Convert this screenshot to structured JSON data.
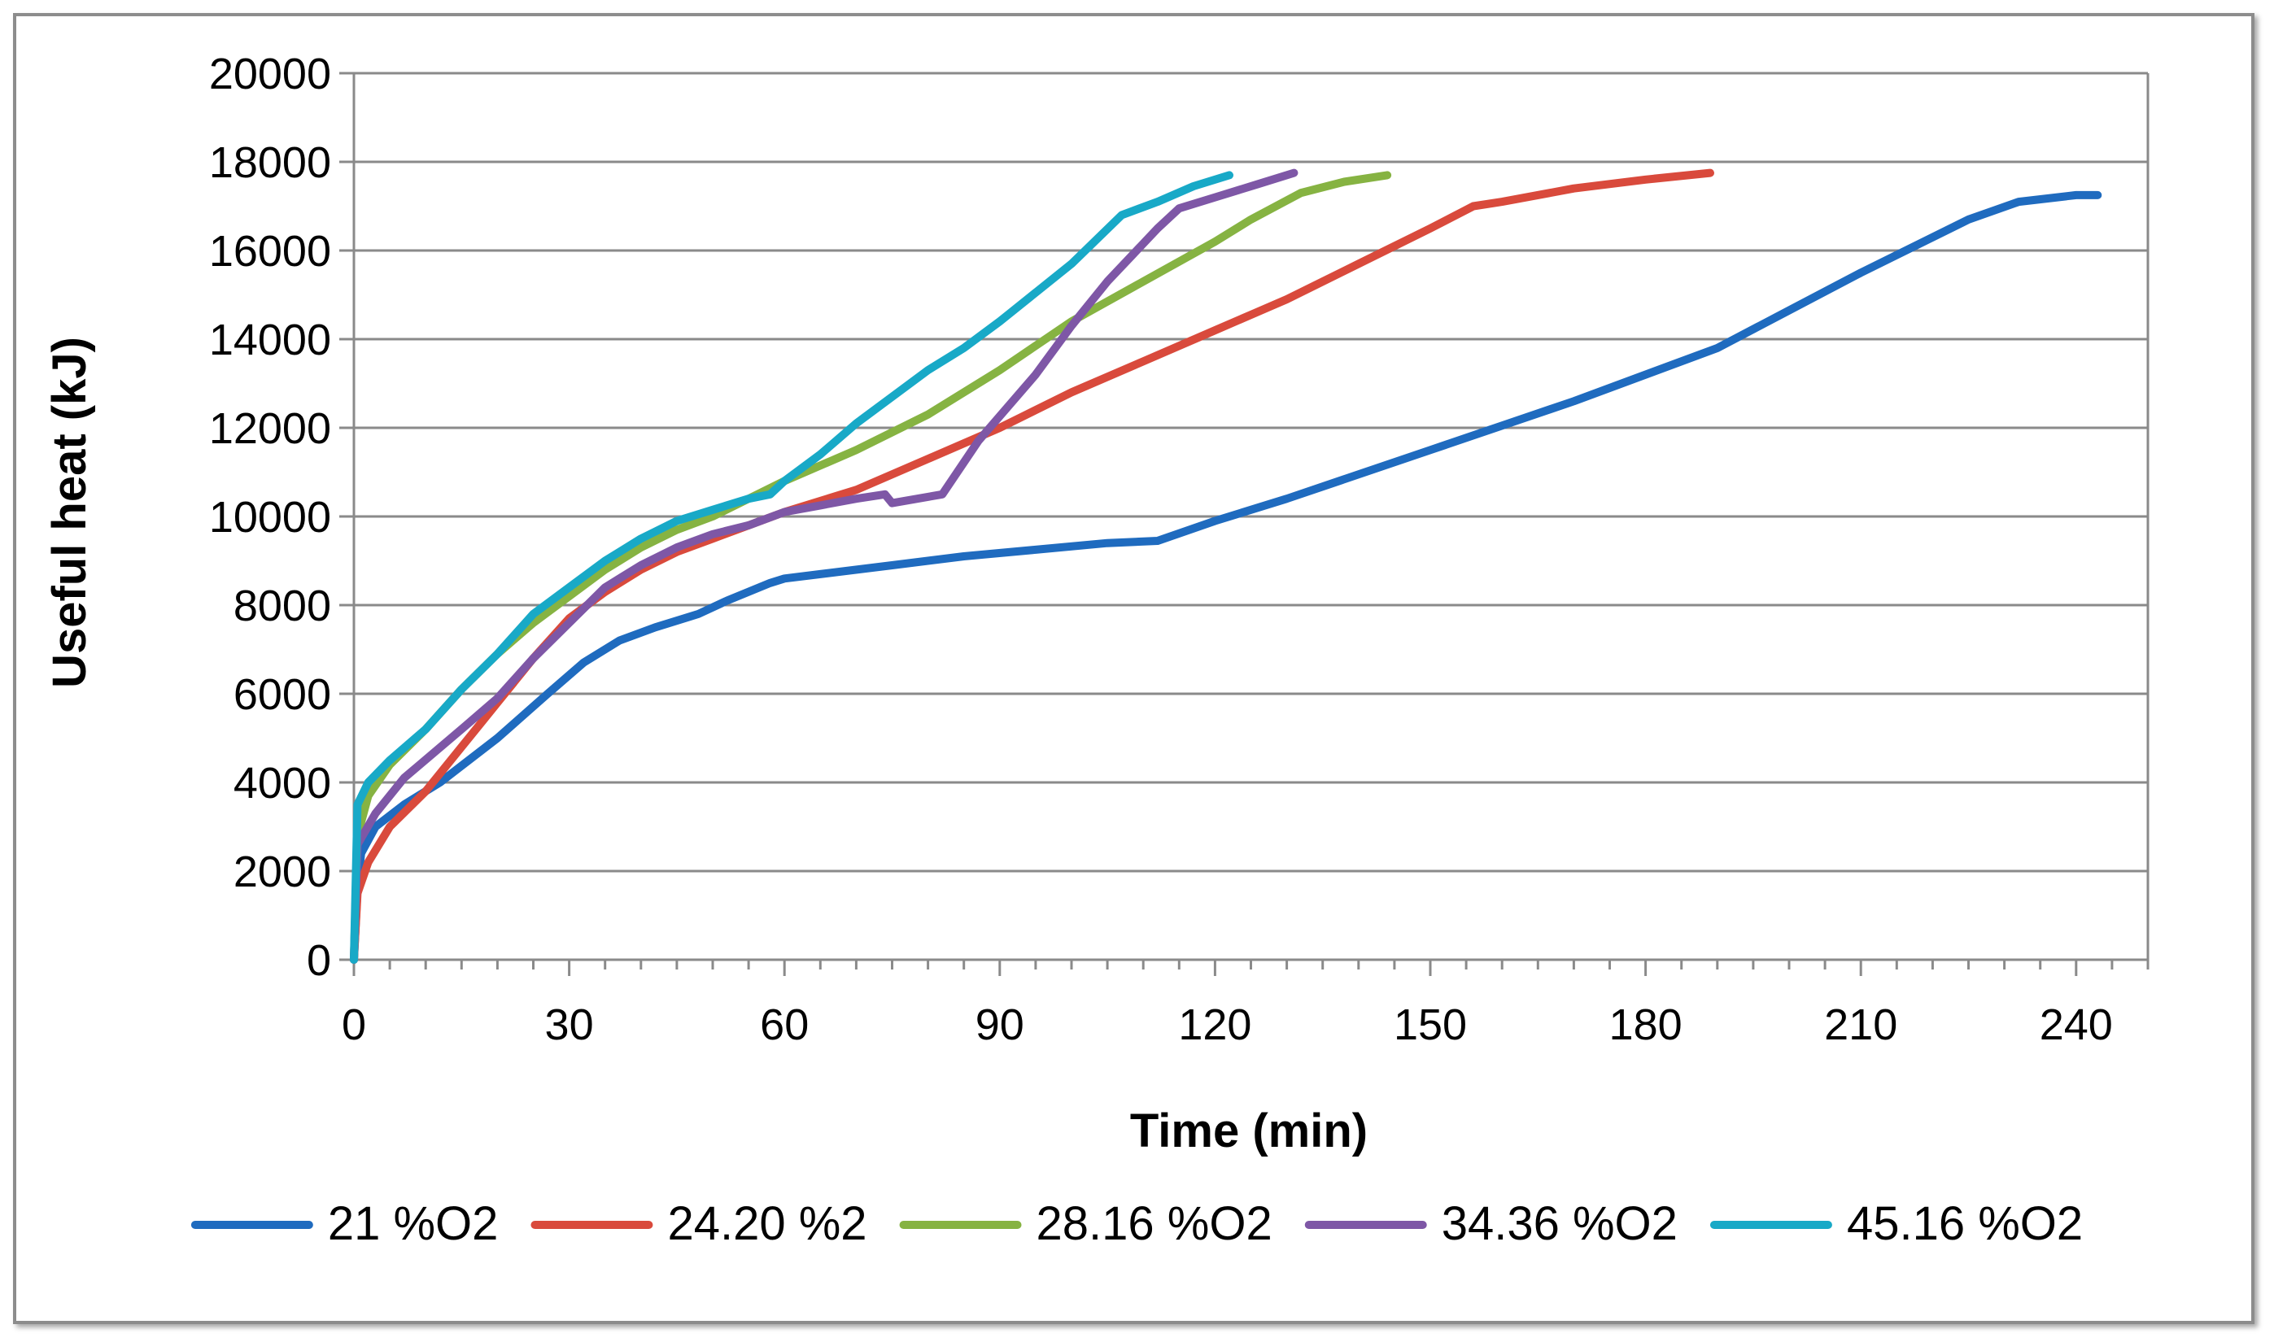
{
  "chart_data": {
    "type": "line",
    "title": "",
    "xlabel": "Time (min)",
    "ylabel": "Useful heat (kJ)",
    "xlim": [
      0,
      250
    ],
    "ylim": [
      0,
      20000
    ],
    "xticks": [
      0,
      30,
      60,
      90,
      120,
      150,
      180,
      210,
      240
    ],
    "yticks": [
      0,
      2000,
      4000,
      6000,
      8000,
      10000,
      12000,
      14000,
      16000,
      18000,
      20000
    ],
    "grid": "horizontal",
    "legend_position": "bottom",
    "series": [
      {
        "name": "21 %O2",
        "color": "#1f6bbf",
        "points": [
          [
            0,
            0
          ],
          [
            0.5,
            1600
          ],
          [
            1,
            2400
          ],
          [
            3,
            3000
          ],
          [
            7,
            3500
          ],
          [
            12,
            4000
          ],
          [
            20,
            5000
          ],
          [
            27,
            6000
          ],
          [
            32,
            6700
          ],
          [
            37,
            7200
          ],
          [
            42,
            7500
          ],
          [
            48,
            7800
          ],
          [
            52,
            8100
          ],
          [
            58,
            8500
          ],
          [
            60,
            8600
          ],
          [
            65,
            8700
          ],
          [
            75,
            8900
          ],
          [
            85,
            9100
          ],
          [
            95,
            9250
          ],
          [
            105,
            9400
          ],
          [
            112,
            9450
          ],
          [
            120,
            9900
          ],
          [
            130,
            10400
          ],
          [
            150,
            11500
          ],
          [
            170,
            12600
          ],
          [
            190,
            13800
          ],
          [
            210,
            15500
          ],
          [
            225,
            16700
          ],
          [
            232,
            17100
          ],
          [
            240,
            17250
          ],
          [
            243,
            17250
          ]
        ]
      },
      {
        "name": "24.20 %2",
        "color": "#d94a3c",
        "points": [
          [
            0,
            0
          ],
          [
            0.5,
            1500
          ],
          [
            2,
            2200
          ],
          [
            5,
            3000
          ],
          [
            10,
            3800
          ],
          [
            15,
            4800
          ],
          [
            20,
            5800
          ],
          [
            25,
            6800
          ],
          [
            30,
            7700
          ],
          [
            35,
            8300
          ],
          [
            40,
            8800
          ],
          [
            45,
            9200
          ],
          [
            50,
            9500
          ],
          [
            55,
            9800
          ],
          [
            60,
            10100
          ],
          [
            70,
            10600
          ],
          [
            80,
            11300
          ],
          [
            90,
            12000
          ],
          [
            100,
            12800
          ],
          [
            110,
            13500
          ],
          [
            120,
            14200
          ],
          [
            130,
            14900
          ],
          [
            140,
            15700
          ],
          [
            150,
            16500
          ],
          [
            156,
            17000
          ],
          [
            160,
            17100
          ],
          [
            170,
            17400
          ],
          [
            180,
            17600
          ],
          [
            189,
            17750
          ]
        ]
      },
      {
        "name": "28.16 %O2",
        "color": "#86b342",
        "points": [
          [
            0,
            0
          ],
          [
            0.5,
            2800
          ],
          [
            2,
            3700
          ],
          [
            5,
            4400
          ],
          [
            10,
            5200
          ],
          [
            15,
            6100
          ],
          [
            20,
            6900
          ],
          [
            25,
            7600
          ],
          [
            30,
            8200
          ],
          [
            35,
            8800
          ],
          [
            40,
            9300
          ],
          [
            45,
            9700
          ],
          [
            50,
            10000
          ],
          [
            55,
            10400
          ],
          [
            60,
            10800
          ],
          [
            70,
            11500
          ],
          [
            80,
            12300
          ],
          [
            90,
            13300
          ],
          [
            100,
            14400
          ],
          [
            110,
            15300
          ],
          [
            120,
            16200
          ],
          [
            125,
            16700
          ],
          [
            132,
            17300
          ],
          [
            138,
            17550
          ],
          [
            144,
            17700
          ]
        ]
      },
      {
        "name": "34.36 %O2",
        "color": "#7e57a6",
        "points": [
          [
            0,
            0
          ],
          [
            0.5,
            2600
          ],
          [
            3,
            3300
          ],
          [
            7,
            4100
          ],
          [
            15,
            5200
          ],
          [
            20,
            5900
          ],
          [
            25,
            6800
          ],
          [
            30,
            7600
          ],
          [
            35,
            8400
          ],
          [
            40,
            8900
          ],
          [
            45,
            9300
          ],
          [
            50,
            9600
          ],
          [
            55,
            9800
          ],
          [
            60,
            10100
          ],
          [
            65,
            10250
          ],
          [
            70,
            10400
          ],
          [
            74,
            10500
          ],
          [
            75,
            10300
          ],
          [
            82,
            10500
          ],
          [
            87,
            11700
          ],
          [
            95,
            13200
          ],
          [
            100,
            14300
          ],
          [
            105,
            15300
          ],
          [
            112,
            16500
          ],
          [
            115,
            16950
          ],
          [
            120,
            17200
          ],
          [
            126,
            17500
          ],
          [
            131,
            17750
          ]
        ]
      },
      {
        "name": "45.16 %O2",
        "color": "#18a9c7",
        "points": [
          [
            0,
            0
          ],
          [
            0.5,
            3500
          ],
          [
            2,
            4000
          ],
          [
            5,
            4500
          ],
          [
            10,
            5200
          ],
          [
            15,
            6100
          ],
          [
            20,
            6900
          ],
          [
            25,
            7800
          ],
          [
            30,
            8400
          ],
          [
            35,
            9000
          ],
          [
            40,
            9500
          ],
          [
            45,
            9900
          ],
          [
            50,
            10150
          ],
          [
            55,
            10400
          ],
          [
            58,
            10500
          ],
          [
            60,
            10800
          ],
          [
            65,
            11400
          ],
          [
            70,
            12100
          ],
          [
            75,
            12700
          ],
          [
            80,
            13300
          ],
          [
            85,
            13800
          ],
          [
            90,
            14400
          ],
          [
            100,
            15700
          ],
          [
            107,
            16800
          ],
          [
            112,
            17100
          ],
          [
            117,
            17450
          ],
          [
            122,
            17700
          ]
        ]
      }
    ]
  }
}
